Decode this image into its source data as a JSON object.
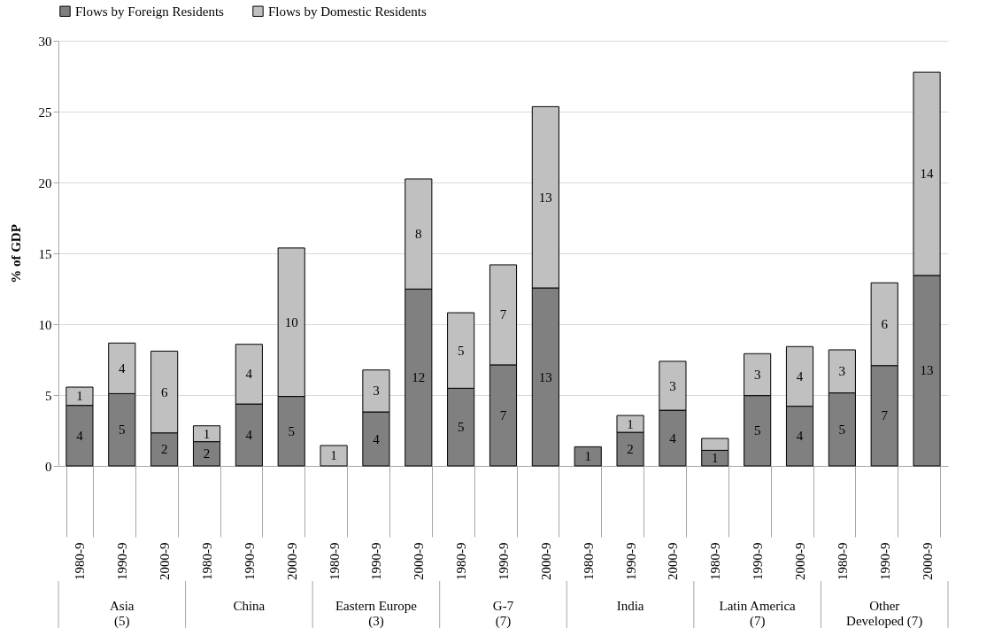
{
  "chart_data": {
    "type": "bar",
    "stacked": true,
    "categories": [
      "1980-9",
      "1990-9",
      "2000-9",
      "1980-9",
      "1990-9",
      "2000-9",
      "1980-9",
      "1990-9",
      "2000-9",
      "1980-9",
      "1990-9",
      "2000-9",
      "1980-9",
      "1990-9",
      "2000-9",
      "1980-9",
      "1990-9",
      "2000-9",
      "1980-9",
      "1990-9",
      "2000-9"
    ],
    "ylabel": "% of GDP",
    "annotations": [
      "Asia\n(5)",
      "China",
      "Eastern Europe\n(3)",
      "G-7\n(7)",
      "India",
      "Latin America\n(7)",
      "Other\nDeveloped (7)"
    ],
    "series": [
      {
        "name": "Flows by Foreign Residents",
        "color": "#808080",
        "values": [
          4.27,
          5.1,
          2.33,
          1.71,
          4.37,
          4.9,
          0,
          3.81,
          12.48,
          5.48,
          7.13,
          12.56,
          1.35,
          2.37,
          3.93,
          1.1,
          4.96,
          4.21,
          5.15,
          7.08,
          13.44
        ],
        "value_labels": [
          "4",
          "5",
          "2",
          "2",
          "4",
          "5",
          null,
          "4",
          "12",
          "5",
          "7",
          "13",
          "1",
          "2",
          "4",
          "1",
          "5",
          "4",
          "5",
          "7",
          "13"
        ]
      },
      {
        "name": "Flows by Domestic Residents",
        "color": "#c0c0c0",
        "values": [
          1.29,
          3.57,
          5.77,
          1.12,
          4.21,
          10.48,
          1.44,
          2.96,
          7.77,
          5.33,
          7.06,
          12.79,
          0,
          1.19,
          3.45,
          0.84,
          2.96,
          4.21,
          3.04,
          5.84,
          14.35
        ],
        "value_labels": [
          "1",
          "4",
          "6",
          "1",
          "4",
          "10",
          "1",
          "3",
          "8",
          "5",
          "7",
          "13",
          null,
          "1",
          "3",
          null,
          "3",
          "4",
          "3",
          "6",
          "14"
        ]
      }
    ],
    "ylim": [
      0,
      30
    ],
    "yticks": [
      0,
      5,
      10,
      15,
      20,
      25,
      30
    ],
    "grid": "y",
    "legend": "top"
  }
}
